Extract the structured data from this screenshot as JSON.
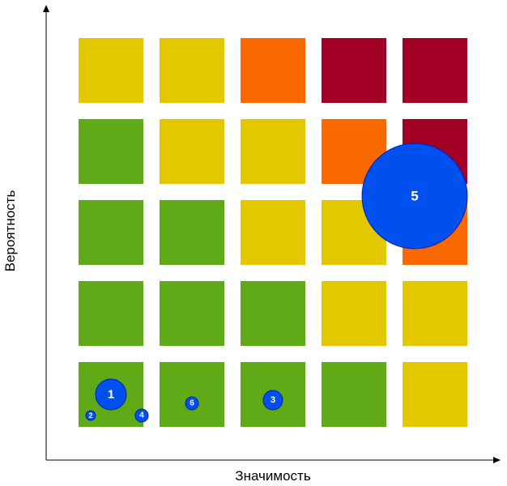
{
  "axes": {
    "x_label": "Значимость",
    "y_label": "Вероятность"
  },
  "colors": {
    "green": "#60a917",
    "yellow": "#e3c800",
    "orange": "#fa6800",
    "red": "#a20025",
    "marker": "#0050ef",
    "marker_stroke": "#001dbc"
  },
  "grid": {
    "rows": [
      [
        "yellow",
        "yellow",
        "orange",
        "red",
        "red"
      ],
      [
        "green",
        "yellow",
        "yellow",
        "orange",
        "red"
      ],
      [
        "green",
        "green",
        "yellow",
        "yellow",
        "orange"
      ],
      [
        "green",
        "green",
        "green",
        "yellow",
        "yellow"
      ],
      [
        "green",
        "green",
        "green",
        "green",
        "yellow"
      ]
    ]
  },
  "markers": [
    {
      "label": "1"
    },
    {
      "label": "2"
    },
    {
      "label": "4"
    },
    {
      "label": "6"
    },
    {
      "label": "3"
    },
    {
      "label": "5"
    }
  ]
}
